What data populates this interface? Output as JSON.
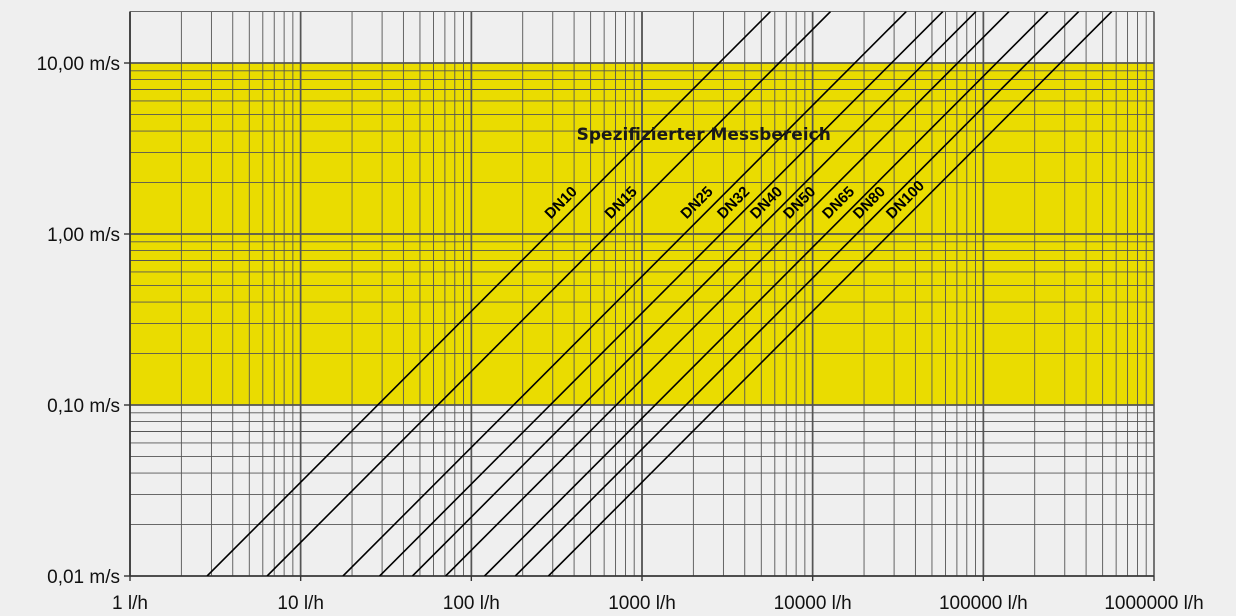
{
  "chart_data": {
    "type": "line",
    "x_scale": "log",
    "y_scale": "log",
    "xlim": [
      1,
      1000000
    ],
    "ylim": [
      0.01,
      20
    ],
    "x_ticks": [
      {
        "value": 1,
        "label": "1 l/h"
      },
      {
        "value": 10,
        "label": "10 l/h"
      },
      {
        "value": 100,
        "label": "100 l/h"
      },
      {
        "value": 1000,
        "label": "1000 l/h"
      },
      {
        "value": 10000,
        "label": "10000 l/h"
      },
      {
        "value": 100000,
        "label": "100000 l/h"
      },
      {
        "value": 1000000,
        "label": "1000000 l/h"
      }
    ],
    "y_ticks": [
      {
        "value": 0.01,
        "label": "0,01 m/s"
      },
      {
        "value": 0.1,
        "label": "0,10 m/s"
      },
      {
        "value": 1,
        "label": "1,00 m/s"
      },
      {
        "value": 10,
        "label": "10,00 m/s"
      }
    ],
    "grid": true,
    "band": {
      "label": "Spezifizierter Messbereich",
      "y_min": 0.1,
      "y_max": 10,
      "color": "#eadc00"
    },
    "grid_color": "#555555",
    "line_color": "#000000",
    "series": [
      {
        "name": "DN10",
        "x": [
          2.83,
          5655
        ],
        "y": [
          0.01,
          20
        ]
      },
      {
        "name": "DN15",
        "x": [
          6.36,
          12723
        ],
        "y": [
          0.01,
          20
        ]
      },
      {
        "name": "DN25",
        "x": [
          17.7,
          35343
        ],
        "y": [
          0.01,
          20
        ]
      },
      {
        "name": "DN32",
        "x": [
          29.0,
          57906
        ],
        "y": [
          0.01,
          20
        ]
      },
      {
        "name": "DN40",
        "x": [
          45.2,
          90478
        ],
        "y": [
          0.01,
          20
        ]
      },
      {
        "name": "DN50",
        "x": [
          70.7,
          141372
        ],
        "y": [
          0.01,
          20
        ]
      },
      {
        "name": "DN65",
        "x": [
          119.5,
          238918
        ],
        "y": [
          0.01,
          20
        ]
      },
      {
        "name": "DN80",
        "x": [
          181,
          361911
        ],
        "y": [
          0.01,
          20
        ]
      },
      {
        "name": "DN100",
        "x": [
          283,
          565487
        ],
        "y": [
          0.01,
          20
        ]
      }
    ]
  }
}
